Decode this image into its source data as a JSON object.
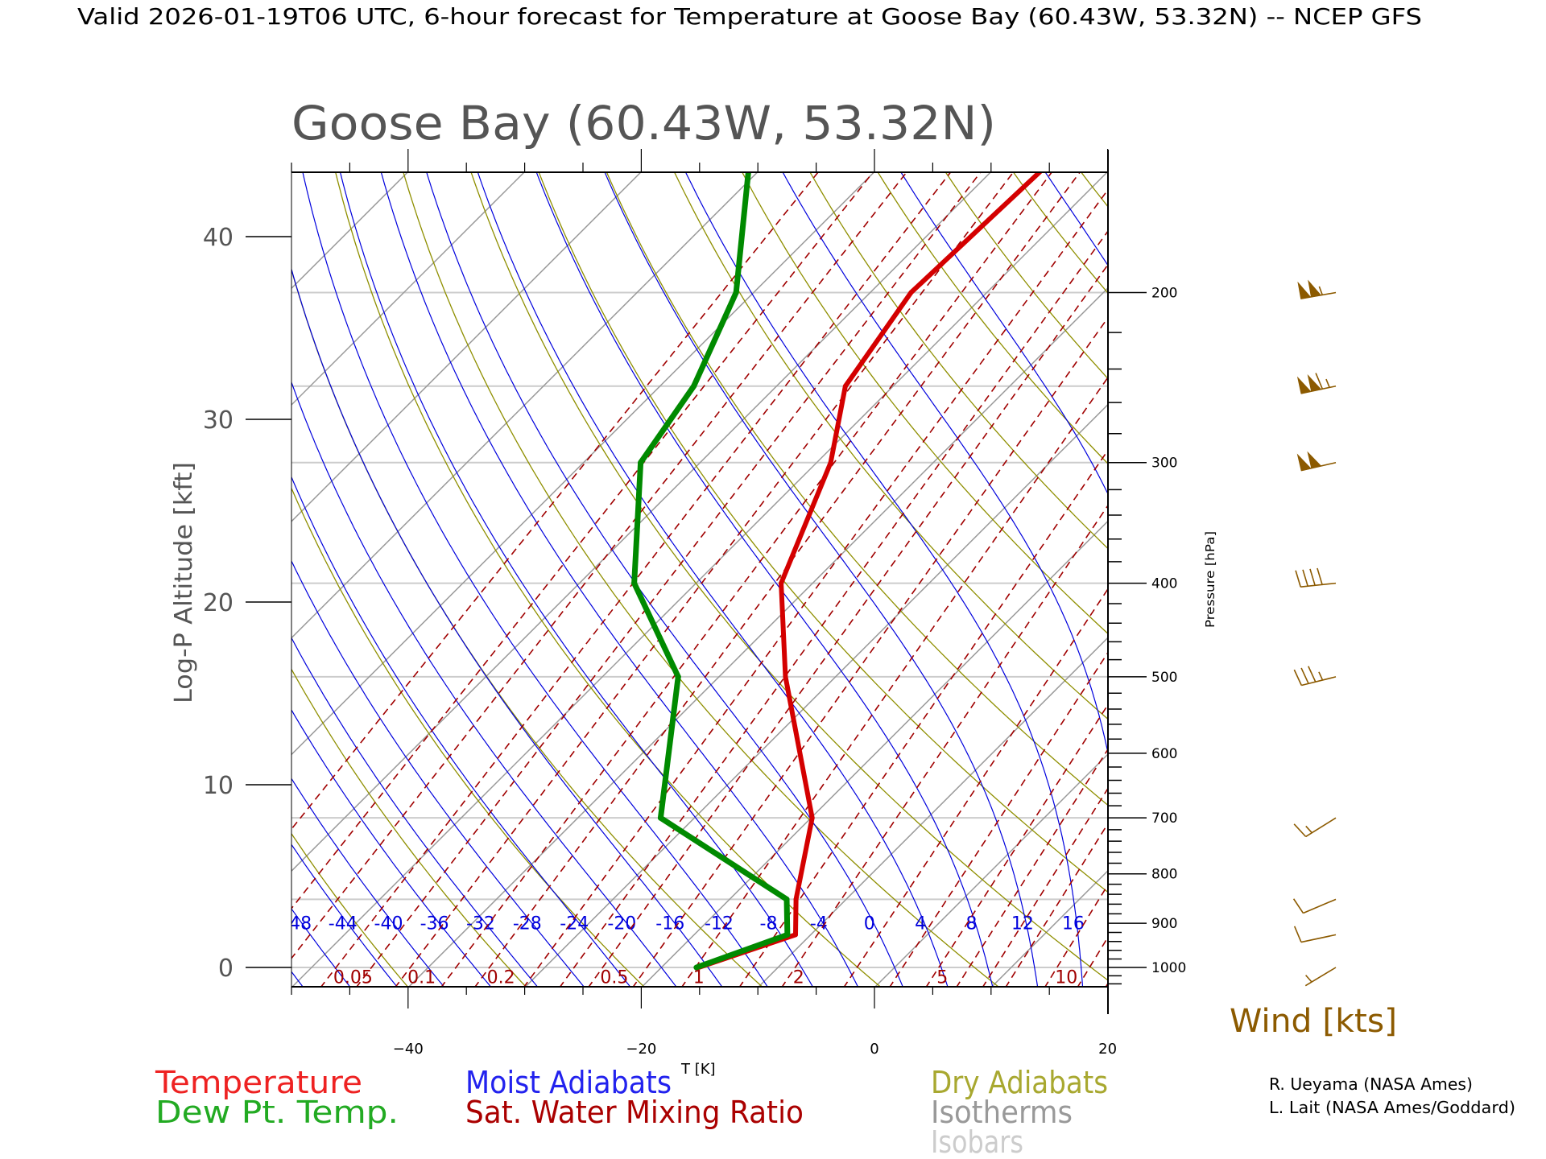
{
  "header": {
    "title": "Valid 2026-01-19T06 UTC, 6-hour forecast for Temperature at Goose Bay (60.43W, 53.32N) -- NCEP GFS"
  },
  "chart_data": {
    "type": "line",
    "subtype": "skew-T log-P",
    "title": "Goose Bay (60.43W, 53.32N)",
    "xlabel": "T [K]",
    "ylabel": "Log-P Altitude [kft]",
    "y2label": "Pressure [hPa]",
    "xlim": [
      -50,
      20
    ],
    "xticks": [
      "-40",
      "-20",
      "0",
      "20"
    ],
    "xtick_values": [
      -40,
      -20,
      0,
      20
    ],
    "ylim_pressure_hPa": [
      1050,
      150
    ],
    "yticks_kft": [
      "0",
      "10",
      "20",
      "30",
      "40"
    ],
    "ytick_values_kft": [
      0,
      10,
      20,
      30,
      40
    ],
    "pressure_labels": [
      "200",
      "300",
      "400",
      "500",
      "600",
      "700",
      "800",
      "900",
      "1000"
    ],
    "pressure_label_values": [
      200,
      300,
      400,
      500,
      600,
      700,
      800,
      900,
      1000
    ],
    "series": [
      {
        "name": "Temperature",
        "color": "#d40000",
        "points": [
          {
            "p": 1000,
            "t": -16.8
          },
          {
            "p": 925,
            "t": -11.3
          },
          {
            "p": 850,
            "t": -14.3
          },
          {
            "p": 700,
            "t": -19.9
          },
          {
            "p": 500,
            "t": -34.3
          },
          {
            "p": 400,
            "t": -42.7
          },
          {
            "p": 300,
            "t": -48.8
          },
          {
            "p": 250,
            "t": -54.1
          },
          {
            "p": 200,
            "t": -56.5
          },
          {
            "p": 150,
            "t": -55.8
          }
        ]
      },
      {
        "name": "Dew Pt. Temp.",
        "color": "#008a00",
        "points": [
          {
            "p": 1000,
            "t": -17.0
          },
          {
            "p": 925,
            "t": -12.0
          },
          {
            "p": 850,
            "t": -15.1
          },
          {
            "p": 700,
            "t": -32.9
          },
          {
            "p": 500,
            "t": -43.5
          },
          {
            "p": 400,
            "t": -55.3
          },
          {
            "p": 300,
            "t": -65.1
          },
          {
            "p": 250,
            "t": -67.1
          },
          {
            "p": 200,
            "t": -71.5
          },
          {
            "p": 150,
            "t": -80.8
          }
        ]
      }
    ],
    "wind": {
      "label": "Wind [kts]",
      "color": "#8c5a00",
      "barbs": [
        {
          "p": 200,
          "dir": 260,
          "speed": 105
        },
        {
          "p": 250,
          "dir": 258,
          "speed": 115
        },
        {
          "p": 300,
          "dir": 257,
          "speed": 100
        },
        {
          "p": 400,
          "dir": 264,
          "speed": 40
        },
        {
          "p": 500,
          "dir": 256,
          "speed": 35
        },
        {
          "p": 700,
          "dir": 238,
          "speed": 15
        },
        {
          "p": 850,
          "dir": 247,
          "speed": 10
        },
        {
          "p": 925,
          "dir": 258,
          "speed": 10
        },
        {
          "p": 1000,
          "dir": 239,
          "speed": 3
        }
      ]
    },
    "reference_lines": {
      "isotherms_C": {
        "start": -130,
        "end": 40,
        "step": 10,
        "color": "#999999"
      },
      "dry_adiabats_K": {
        "start": 200,
        "end": 460,
        "step": 10,
        "color": "#8f8f00"
      },
      "moist_adiabats_C": {
        "start": -60,
        "end": 36,
        "step": 4,
        "color": "#0000dd"
      },
      "moist_adiabat_labels": [
        "-48",
        "-44",
        "-40",
        "-36",
        "-32",
        "-28",
        "-24",
        "-20",
        "-16",
        "-12",
        "-8",
        "-4",
        "0",
        "4",
        "8",
        "12",
        "16"
      ],
      "mixing_ratios_gkg": [
        0.01,
        0.02,
        0.03,
        0.05,
        0.07,
        0.1,
        0.15,
        0.2,
        0.3,
        0.4,
        0.5,
        0.7,
        1,
        1.5,
        2,
        3,
        4,
        5,
        6,
        7,
        8,
        10,
        12,
        14,
        16,
        20
      ],
      "mixing_ratio_labels": [
        "0.05",
        "0.1",
        "0.2",
        "0.5",
        "1",
        "2",
        "5",
        "10"
      ],
      "mixing_ratio_color": "#a00000",
      "isobars_hPa": [
        1000,
        850,
        700,
        500,
        400,
        300,
        250,
        200
      ],
      "isobar_color": "#cccccc"
    }
  },
  "legend": {
    "temperature": {
      "label": "Temperature",
      "color": "#ee2222"
    },
    "dewpoint": {
      "label": "Dew Pt. Temp.",
      "color": "#22aa22"
    },
    "moist": {
      "label": "Moist Adiabats",
      "color": "#2222ee"
    },
    "mixing": {
      "label": "Sat. Water Mixing Ratio",
      "color": "#aa0000"
    },
    "dry": {
      "label": "Dry Adiabats",
      "color": "#a8a830"
    },
    "isotherms": {
      "label": "Isotherms",
      "color": "#999999"
    },
    "isobars": {
      "label": "Isobars",
      "color": "#cccccc"
    }
  },
  "credits": {
    "line1": "R. Ueyama (NASA Ames)",
    "line2": "L. Lait (NASA Ames/Goddard)"
  }
}
